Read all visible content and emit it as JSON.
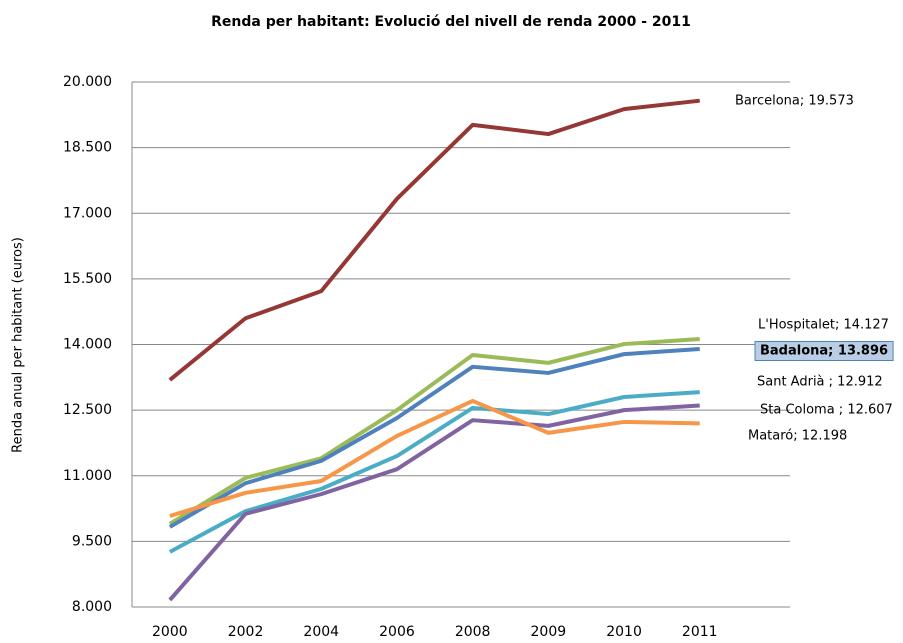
{
  "chart_data": {
    "type": "line",
    "title": "Renda per habitant: Evolució del nivell de renda 2000 - 2011",
    "y_label": "Renda anual per habitant (euros)",
    "categories": [
      "2000",
      "2002",
      "2004",
      "2006",
      "2008",
      "2009",
      "2010",
      "2011"
    ],
    "ylim": [
      8000,
      20000
    ],
    "yticks": [
      {
        "value": 8000,
        "label": "8.000"
      },
      {
        "value": 9500,
        "label": "9.500"
      },
      {
        "value": 11000,
        "label": "11.000"
      },
      {
        "value": 12500,
        "label": "12.500"
      },
      {
        "value": 14000,
        "label": "14.000"
      },
      {
        "value": 15500,
        "label": "15.500"
      },
      {
        "value": 17000,
        "label": "17.000"
      },
      {
        "value": 18500,
        "label": "18.500"
      },
      {
        "value": 20000,
        "label": "20.000"
      }
    ],
    "grid": true,
    "series": [
      {
        "name": "Barcelona",
        "color": "#953735",
        "values": [
          13190,
          14600,
          15220,
          17330,
          19020,
          18810,
          19380,
          19573
        ],
        "value_labels": [
          null,
          null,
          null,
          null,
          null,
          null,
          null,
          "Barcelona; 19.573"
        ]
      },
      {
        "name": "L'Hospitalet",
        "color": "#9bbb59",
        "values": [
          9900,
          10950,
          11400,
          12500,
          13760,
          13580,
          14010,
          14127
        ],
        "value_labels": [
          null,
          null,
          null,
          null,
          null,
          null,
          null,
          "L'Hospitalet; 14.127"
        ]
      },
      {
        "name": "Badalona",
        "color": "#4f81bd",
        "highlight": true,
        "values": [
          9830,
          10830,
          11340,
          12320,
          13490,
          13350,
          13780,
          13896
        ],
        "value_labels": [
          null,
          null,
          null,
          null,
          null,
          null,
          null,
          "Badalona; 13.896"
        ]
      },
      {
        "name": "Sant Adrià",
        "color": "#4bacc6",
        "values": [
          9260,
          10190,
          10700,
          11450,
          12550,
          12410,
          12800,
          12912
        ],
        "value_labels": [
          null,
          null,
          null,
          null,
          null,
          null,
          null,
          "Sant Adrià ; 12.912"
        ]
      },
      {
        "name": "Sta Coloma",
        "color": "#8064a2",
        "values": [
          8160,
          10130,
          10580,
          11150,
          12270,
          12140,
          12500,
          12607
        ],
        "value_labels": [
          null,
          null,
          null,
          null,
          null,
          null,
          null,
          "Sta Coloma ; 12.607"
        ]
      },
      {
        "name": "Mataró",
        "color": "#f79646",
        "values": [
          10080,
          10610,
          10880,
          11910,
          12710,
          11980,
          12230,
          12198
        ],
        "value_labels": [
          null,
          null,
          null,
          null,
          null,
          null,
          null,
          "Mataró; 12.198"
        ]
      }
    ]
  }
}
